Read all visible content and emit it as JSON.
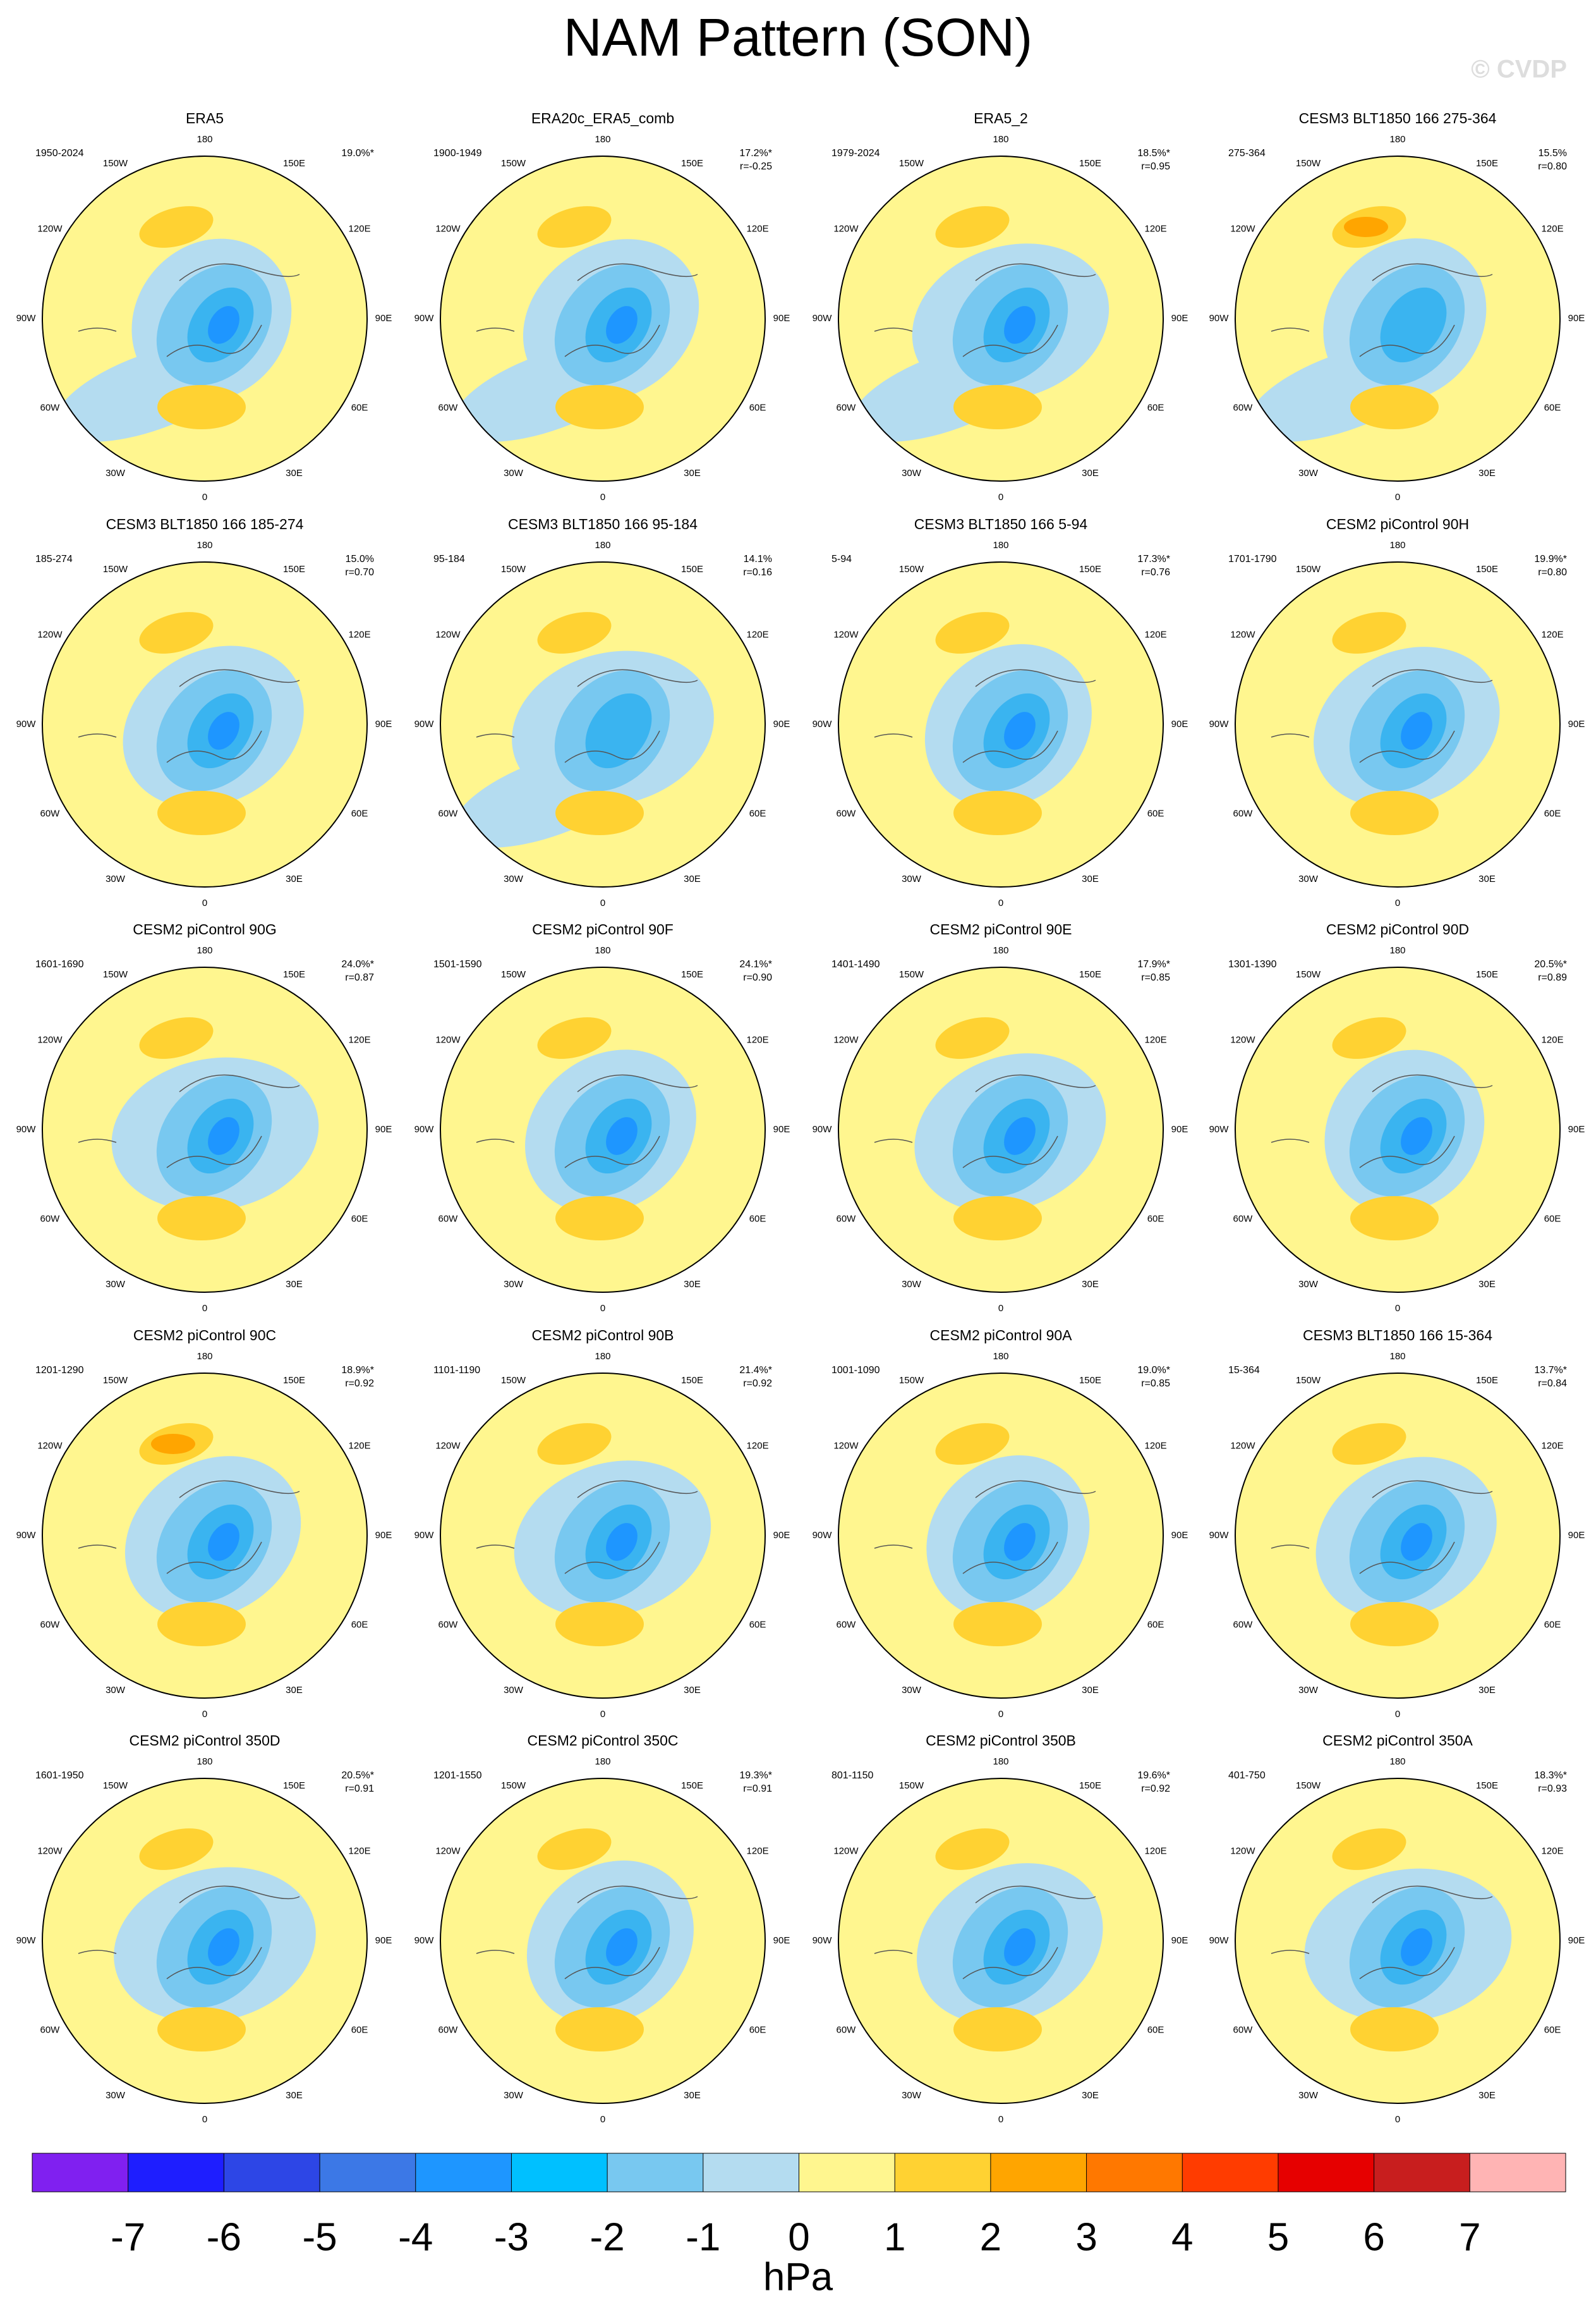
{
  "header": {
    "title": "NAM Pattern (SON)",
    "watermark": "© CVDP"
  },
  "longitude_labels": [
    "0",
    "30E",
    "60E",
    "90E",
    "120E",
    "150E",
    "180",
    "150W",
    "120W",
    "90W",
    "60W",
    "30W"
  ],
  "panels": [
    {
      "title": "ERA5",
      "period": "1950-2024",
      "variance": "19.0%*"
    },
    {
      "title": "ERA20c_ERA5_comb",
      "period": "1900-1949",
      "variance": "17.2%*",
      "correlation": "r=-0.25"
    },
    {
      "title": "ERA5_2",
      "period": "1979-2024",
      "variance": "18.5%*",
      "correlation": "r=0.95"
    },
    {
      "title": "CESM3 BLT1850 166 275-364",
      "period": "275-364",
      "variance": "15.5%",
      "correlation": "r=0.80"
    },
    {
      "title": "CESM3 BLT1850 166 185-274",
      "period": "185-274",
      "variance": "15.0%",
      "correlation": "r=0.70"
    },
    {
      "title": "CESM3 BLT1850 166 95-184",
      "period": "95-184",
      "variance": "14.1%",
      "correlation": "r=0.16"
    },
    {
      "title": "CESM3 BLT1850 166 5-94",
      "period": "5-94",
      "variance": "17.3%*",
      "correlation": "r=0.76"
    },
    {
      "title": "CESM2 piControl 90H",
      "period": "1701-1790",
      "variance": "19.9%*",
      "correlation": "r=0.80"
    },
    {
      "title": "CESM2 piControl 90G",
      "period": "1601-1690",
      "variance": "24.0%*",
      "correlation": "r=0.87"
    },
    {
      "title": "CESM2 piControl 90F",
      "period": "1501-1590",
      "variance": "24.1%*",
      "correlation": "r=0.90"
    },
    {
      "title": "CESM2 piControl 90E",
      "period": "1401-1490",
      "variance": "17.9%*",
      "correlation": "r=0.85"
    },
    {
      "title": "CESM2 piControl 90D",
      "period": "1301-1390",
      "variance": "20.5%*",
      "correlation": "r=0.89"
    },
    {
      "title": "CESM2 piControl 90C",
      "period": "1201-1290",
      "variance": "18.9%*",
      "correlation": "r=0.92"
    },
    {
      "title": "CESM2 piControl 90B",
      "period": "1101-1190",
      "variance": "21.4%*",
      "correlation": "r=0.92"
    },
    {
      "title": "CESM2 piControl 90A",
      "period": "1001-1090",
      "variance": "19.0%*",
      "correlation": "r=0.85"
    },
    {
      "title": "CESM3 BLT1850 166 15-364",
      "period": "15-364",
      "variance": "13.7%*",
      "correlation": "r=0.84"
    },
    {
      "title": "CESM2 piControl 350D",
      "period": "1601-1950",
      "variance": "20.5%*",
      "correlation": "r=0.91"
    },
    {
      "title": "CESM2 piControl 350C",
      "period": "1201-1550",
      "variance": "19.3%*",
      "correlation": "r=0.91"
    },
    {
      "title": "CESM2 piControl 350B",
      "period": "801-1150",
      "variance": "19.6%*",
      "correlation": "r=0.92"
    },
    {
      "title": "CESM2 piControl 350A",
      "period": "401-750",
      "variance": "18.3%*",
      "correlation": "r=0.93"
    }
  ],
  "colorbar": {
    "unit": "hPa",
    "ticks": [
      -7,
      -6,
      -5,
      -4,
      -3,
      -2,
      -1,
      0,
      1,
      2,
      3,
      4,
      5,
      6,
      7
    ],
    "colors": [
      "#8020f0",
      "#1e1eff",
      "#2d46e6",
      "#3c78e6",
      "#1e96ff",
      "#00c0ff",
      "#78c8f0",
      "#b4dcf0",
      "#fff68f",
      "#ffd232",
      "#ffa500",
      "#ff7800",
      "#ff3c00",
      "#e60000",
      "#c81e1e",
      "#ffb4b4"
    ]
  }
}
